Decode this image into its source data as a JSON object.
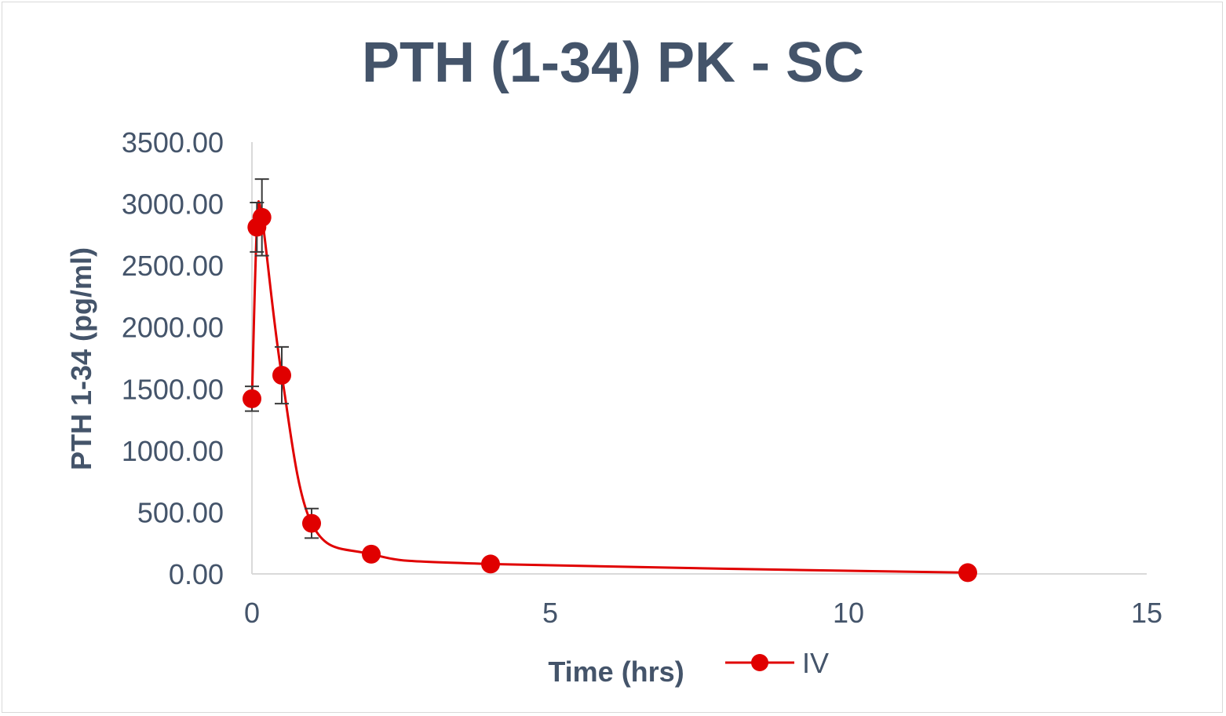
{
  "chart_data": {
    "type": "scatter",
    "title": "PTH (1-34) PK - SC",
    "xlabel": "Time (hrs)",
    "ylabel": "PTH 1-34 (pg/ml)",
    "xlim": [
      0,
      15
    ],
    "ylim": [
      0,
      3500
    ],
    "x_ticks": [
      "0",
      "5",
      "10",
      "15"
    ],
    "y_ticks": [
      "0.00",
      "500.00",
      "1000.00",
      "1500.00",
      "2000.00",
      "2500.00",
      "3000.00",
      "3500.00"
    ],
    "grid": false,
    "legend_position": "bottom",
    "series": [
      {
        "name": "IV",
        "color": "#e00000",
        "marker": "circle",
        "line": "smooth",
        "x": [
          0,
          0.083,
          0.167,
          0.5,
          1,
          2,
          4,
          12
        ],
        "y": [
          1420,
          2810,
          2890,
          1610,
          410,
          160,
          80,
          10
        ],
        "error": [
          100,
          200,
          310,
          230,
          120,
          0,
          0,
          0
        ]
      }
    ]
  }
}
